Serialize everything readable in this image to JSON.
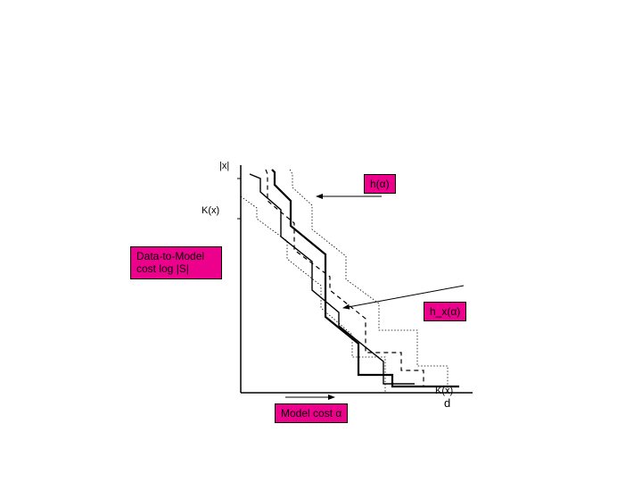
{
  "axes": {
    "y_label_top": "|x|",
    "y_label_mid": "K(x)",
    "x_label_bottom": "K(x)",
    "d_label": "d"
  },
  "labels": {
    "h_alpha": "h(α)",
    "hx_alpha": "h_x(α)",
    "data_to_model_line1": "Data-to-Model",
    "data_to_model_line2": "cost log |S|",
    "model_cost": "Model cost α"
  },
  "chart": {
    "type": "line-diagram",
    "colors": {
      "background": "#ffffff",
      "stroke": "#000000",
      "label_bg": "#ec008c"
    },
    "axis": {
      "x_range": [
        0,
        260
      ],
      "y_range": [
        0,
        255
      ]
    },
    "solid_main": [
      [
        10,
        10
      ],
      [
        22,
        15
      ],
      [
        22,
        30
      ],
      [
        45,
        50
      ],
      [
        45,
        80
      ],
      [
        80,
        108
      ],
      [
        80,
        140
      ],
      [
        110,
        165
      ],
      [
        110,
        180
      ],
      [
        160,
        220
      ],
      [
        160,
        245
      ],
      [
        195,
        245
      ]
    ],
    "solid_heavy": [
      [
        35,
        5
      ],
      [
        38,
        8
      ],
      [
        38,
        22
      ],
      [
        56,
        40
      ],
      [
        56,
        68
      ],
      [
        95,
        100
      ],
      [
        95,
        170
      ],
      [
        132,
        200
      ],
      [
        132,
        235
      ],
      [
        170,
        235
      ],
      [
        170,
        248
      ],
      [
        245,
        248
      ]
    ],
    "dashed_mid": [
      [
        28,
        5
      ],
      [
        30,
        10
      ],
      [
        30,
        40
      ],
      [
        60,
        65
      ],
      [
        60,
        95
      ],
      [
        100,
        125
      ],
      [
        100,
        140
      ],
      [
        140,
        172
      ],
      [
        140,
        210
      ],
      [
        180,
        210
      ],
      [
        180,
        230
      ],
      [
        205,
        230
      ],
      [
        205,
        248
      ]
    ],
    "dotted_upper": [
      [
        0,
        35
      ],
      [
        18,
        48
      ],
      [
        18,
        60
      ],
      [
        52,
        85
      ],
      [
        52,
        105
      ],
      [
        90,
        135
      ],
      [
        90,
        160
      ],
      [
        125,
        190
      ],
      [
        125,
        215
      ],
      [
        162,
        215
      ],
      [
        162,
        255
      ]
    ],
    "dotted_lower": [
      [
        55,
        5
      ],
      [
        58,
        10
      ],
      [
        58,
        25
      ],
      [
        80,
        45
      ],
      [
        80,
        72
      ],
      [
        118,
        102
      ],
      [
        118,
        128
      ],
      [
        155,
        155
      ],
      [
        155,
        185
      ],
      [
        198,
        185
      ],
      [
        198,
        225
      ],
      [
        232,
        225
      ],
      [
        232,
        255
      ]
    ],
    "arrow_h": {
      "from": [
        158,
        35
      ],
      "to": [
        85,
        35
      ]
    },
    "arrow_hx": {
      "from": [
        250,
        135
      ],
      "to": [
        115,
        160
      ]
    },
    "arrow_model": {
      "from": [
        50,
        260
      ],
      "to": [
        105,
        260
      ]
    }
  }
}
